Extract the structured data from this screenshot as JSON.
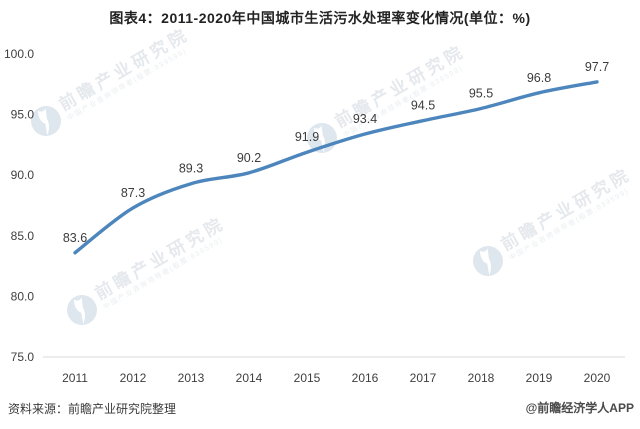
{
  "title": "图表4：2011-2020年中国城市生活污水处理率变化情况(单位：%)",
  "chart_data": {
    "type": "line",
    "title": "图表4：2011-2020年中国城市生活污水处理率变化情况(单位：%)",
    "unit": "%",
    "categories": [
      "2011",
      "2012",
      "2013",
      "2014",
      "2015",
      "2016",
      "2017",
      "2018",
      "2019",
      "2020"
    ],
    "values": [
      83.6,
      87.3,
      89.3,
      90.2,
      91.9,
      93.4,
      94.5,
      95.5,
      96.8,
      97.7
    ],
    "data_labels": [
      "83.6",
      "87.3",
      "89.3",
      "90.2",
      "91.9",
      "93.4",
      "94.5",
      "95.5",
      "96.8",
      "97.7"
    ],
    "ytick_labels": [
      "100.0",
      "95.0",
      "90.0",
      "85.0",
      "80.0",
      "75.0"
    ],
    "ylim": [
      75,
      100
    ],
    "xlabel": "",
    "ylabel": "",
    "grid": false,
    "legend": false,
    "line_color": "#4d86bd"
  },
  "watermark": {
    "brand": "前瞻产业研究院",
    "subtitle": "中国产业咨询领导者(股票:839599)",
    "logo": "qianzhan-bird-logo"
  },
  "footer": {
    "source": "资料来源：前瞻产业研究院整理",
    "credit": "@前瞻经济学人APP"
  },
  "colors": {
    "line": "#4d86bd",
    "axis_text": "#404040",
    "baseline": "#d9d9d9",
    "watermark_text": "#e5e9ed",
    "watermark_circle": "#dfe7ee"
  }
}
